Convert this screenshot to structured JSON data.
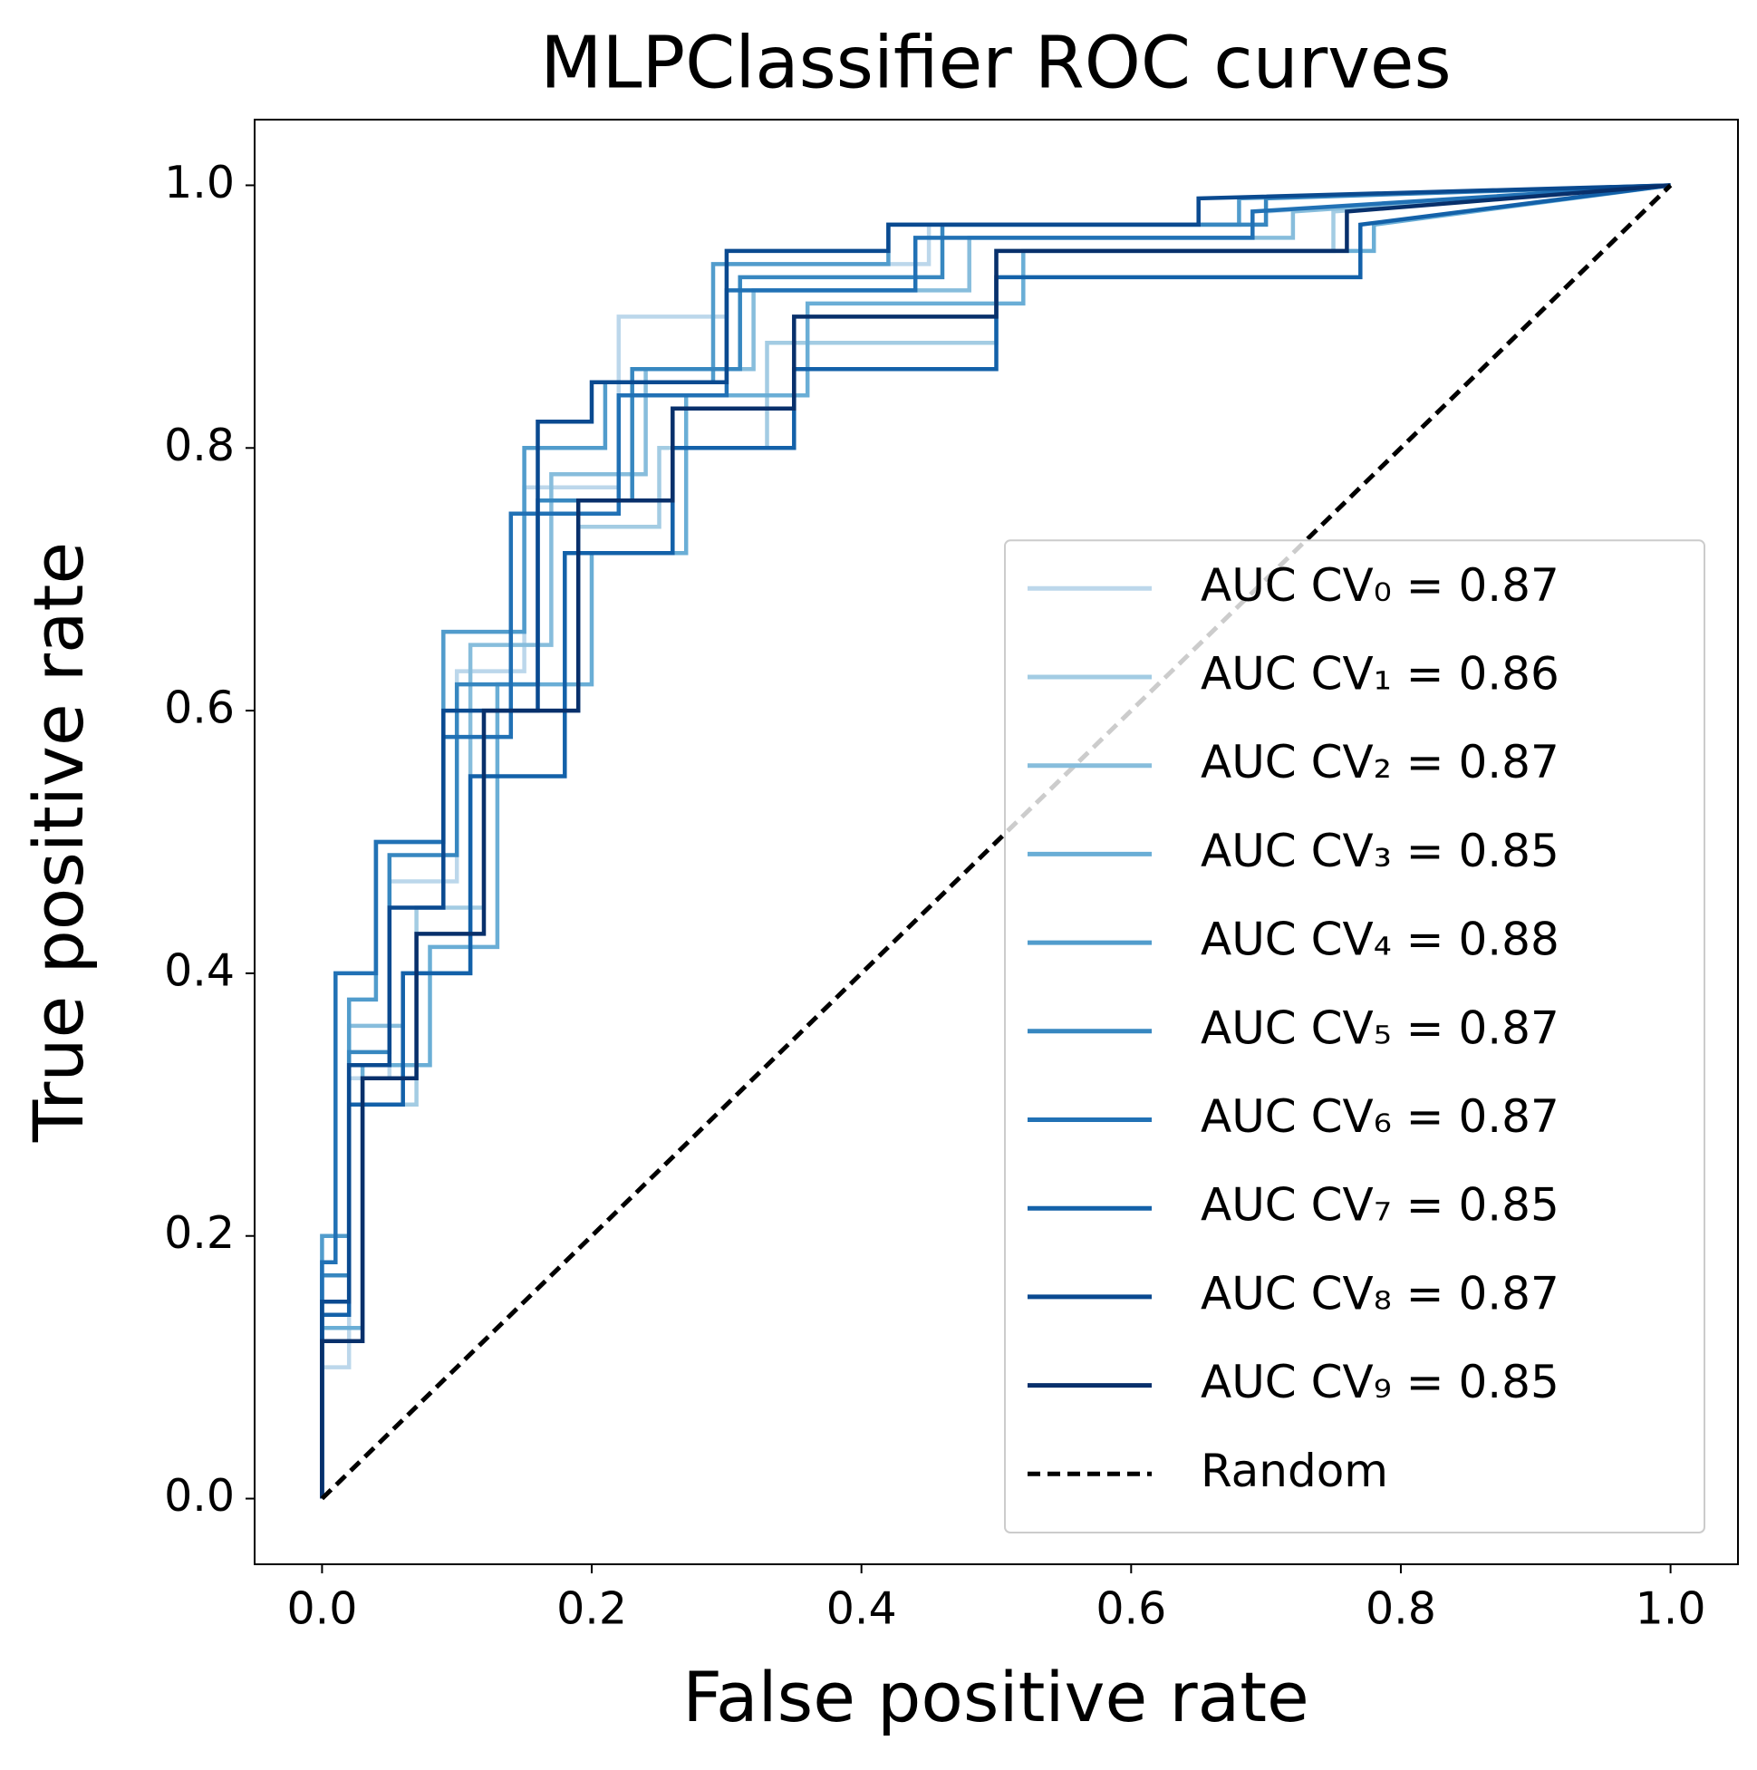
{
  "chart_data": {
    "type": "line",
    "title": "MLPClassifier ROC curves",
    "x_label": "False positive rate",
    "y_label": "True positive rate",
    "xlim": [
      -0.05,
      1.05
    ],
    "ylim": [
      -0.05,
      1.05
    ],
    "xticks": [
      {
        "value": 0,
        "label": "0.0"
      },
      {
        "value": 0.2,
        "label": "0.2"
      },
      {
        "value": 0.4,
        "label": "0.4"
      },
      {
        "value": 0.6,
        "label": "0.6"
      },
      {
        "value": 0.8,
        "label": "0.8"
      },
      {
        "value": 1,
        "label": "1.0"
      }
    ],
    "yticks": [
      {
        "value": 0,
        "label": "0.0"
      },
      {
        "value": 0.2,
        "label": "0.2"
      },
      {
        "value": 0.4,
        "label": "0.4"
      },
      {
        "value": 0.6,
        "label": "0.6"
      },
      {
        "value": 0.8,
        "label": "0.8"
      },
      {
        "value": 1,
        "label": "1.0"
      }
    ],
    "legend": "lower right",
    "series": [
      {
        "name": "AUC CV₀ = 0.87",
        "color": "#bcd7eb",
        "linestyle": "solid",
        "x": [
          0,
          0,
          0.02,
          0.02,
          0.05,
          0.05,
          0.1,
          0.1,
          0.15,
          0.15,
          0.22,
          0.22,
          0.3,
          0.3,
          0.45,
          0.45,
          0.7,
          0.7,
          1
        ],
        "y": [
          0,
          0.1,
          0.1,
          0.32,
          0.32,
          0.47,
          0.47,
          0.63,
          0.63,
          0.77,
          0.77,
          0.9,
          0.9,
          0.94,
          0.94,
          0.97,
          0.97,
          0.98,
          1
        ]
      },
      {
        "name": "AUC CV₁ = 0.86",
        "color": "#a3cce3",
        "linestyle": "solid",
        "x": [
          0,
          0,
          0.03,
          0.03,
          0.07,
          0.07,
          0.12,
          0.12,
          0.19,
          0.19,
          0.25,
          0.25,
          0.33,
          0.33,
          0.5,
          0.5,
          0.75,
          0.75,
          1
        ],
        "y": [
          0,
          0.12,
          0.12,
          0.3,
          0.3,
          0.45,
          0.45,
          0.6,
          0.6,
          0.74,
          0.74,
          0.8,
          0.8,
          0.88,
          0.88,
          0.95,
          0.95,
          0.98,
          1
        ]
      },
      {
        "name": "AUC CV₂ = 0.87",
        "color": "#87bddc",
        "linestyle": "solid",
        "x": [
          0,
          0,
          0.02,
          0.02,
          0.06,
          0.06,
          0.11,
          0.11,
          0.17,
          0.17,
          0.24,
          0.24,
          0.32,
          0.32,
          0.48,
          0.48,
          0.72,
          0.72,
          1
        ],
        "y": [
          0,
          0.15,
          0.15,
          0.36,
          0.36,
          0.4,
          0.4,
          0.65,
          0.65,
          0.78,
          0.78,
          0.86,
          0.86,
          0.92,
          0.92,
          0.96,
          0.96,
          0.98,
          1
        ]
      },
      {
        "name": "AUC CV₃ = 0.85",
        "color": "#6aaed6",
        "linestyle": "solid",
        "x": [
          0,
          0,
          0.03,
          0.03,
          0.08,
          0.08,
          0.13,
          0.13,
          0.2,
          0.2,
          0.27,
          0.27,
          0.36,
          0.36,
          0.52,
          0.52,
          0.78,
          0.78,
          1
        ],
        "y": [
          0,
          0.13,
          0.13,
          0.33,
          0.33,
          0.42,
          0.42,
          0.62,
          0.62,
          0.72,
          0.72,
          0.84,
          0.84,
          0.91,
          0.91,
          0.95,
          0.95,
          0.97,
          1
        ]
      },
      {
        "name": "AUC CV₄ = 0.88",
        "color": "#519ccc",
        "linestyle": "solid",
        "x": [
          0,
          0,
          0.02,
          0.02,
          0.04,
          0.04,
          0.09,
          0.09,
          0.15,
          0.15,
          0.21,
          0.21,
          0.29,
          0.29,
          0.42,
          0.42,
          0.68,
          0.68,
          1
        ],
        "y": [
          0,
          0.2,
          0.2,
          0.38,
          0.38,
          0.5,
          0.5,
          0.66,
          0.66,
          0.8,
          0.8,
          0.85,
          0.85,
          0.94,
          0.94,
          0.97,
          0.97,
          0.99,
          1
        ]
      },
      {
        "name": "AUC CV₅ = 0.87",
        "color": "#3787c0",
        "linestyle": "solid",
        "x": [
          0,
          0,
          0.02,
          0.02,
          0.05,
          0.05,
          0.1,
          0.1,
          0.16,
          0.16,
          0.23,
          0.23,
          0.31,
          0.31,
          0.46,
          0.46,
          0.7,
          0.7,
          1
        ],
        "y": [
          0,
          0.17,
          0.17,
          0.34,
          0.34,
          0.49,
          0.49,
          0.62,
          0.62,
          0.76,
          0.76,
          0.86,
          0.86,
          0.93,
          0.93,
          0.97,
          0.97,
          0.99,
          1
        ]
      },
      {
        "name": "AUC CV₆ = 0.87",
        "color": "#2171b5",
        "linestyle": "solid",
        "x": [
          0,
          0,
          0.01,
          0.01,
          0.04,
          0.04,
          0.09,
          0.09,
          0.14,
          0.14,
          0.22,
          0.22,
          0.3,
          0.3,
          0.44,
          0.44,
          0.69,
          0.69,
          1
        ],
        "y": [
          0,
          0.18,
          0.18,
          0.4,
          0.4,
          0.5,
          0.5,
          0.58,
          0.58,
          0.75,
          0.75,
          0.84,
          0.84,
          0.92,
          0.92,
          0.96,
          0.96,
          0.98,
          1
        ]
      },
      {
        "name": "AUC CV₇ = 0.85",
        "color": "#1361a9",
        "linestyle": "solid",
        "x": [
          0,
          0,
          0.02,
          0.02,
          0.06,
          0.06,
          0.11,
          0.11,
          0.18,
          0.18,
          0.26,
          0.26,
          0.35,
          0.35,
          0.5,
          0.5,
          0.77,
          0.77,
          1
        ],
        "y": [
          0,
          0.14,
          0.14,
          0.3,
          0.3,
          0.4,
          0.4,
          0.55,
          0.55,
          0.72,
          0.72,
          0.8,
          0.8,
          0.86,
          0.86,
          0.93,
          0.93,
          0.97,
          1
        ]
      },
      {
        "name": "AUC CV₈ = 0.87",
        "color": "#0a4a90",
        "linestyle": "solid",
        "x": [
          0,
          0,
          0.02,
          0.02,
          0.05,
          0.05,
          0.09,
          0.09,
          0.16,
          0.16,
          0.2,
          0.2,
          0.3,
          0.3,
          0.42,
          0.42,
          0.65,
          0.65,
          1
        ],
        "y": [
          0,
          0.15,
          0.15,
          0.33,
          0.33,
          0.45,
          0.45,
          0.6,
          0.6,
          0.82,
          0.82,
          0.85,
          0.85,
          0.95,
          0.95,
          0.97,
          0.97,
          0.99,
          1
        ]
      },
      {
        "name": "AUC CV₉ = 0.85",
        "color": "#08306b",
        "linestyle": "solid",
        "x": [
          0,
          0,
          0.03,
          0.03,
          0.07,
          0.07,
          0.12,
          0.12,
          0.19,
          0.19,
          0.26,
          0.26,
          0.35,
          0.35,
          0.5,
          0.5,
          0.76,
          0.76,
          1
        ],
        "y": [
          0,
          0.12,
          0.12,
          0.32,
          0.32,
          0.43,
          0.43,
          0.6,
          0.6,
          0.76,
          0.76,
          0.83,
          0.83,
          0.9,
          0.9,
          0.95,
          0.95,
          0.98,
          1
        ]
      },
      {
        "name": "Random",
        "color": "#000000",
        "linestyle": "dashed",
        "x": [
          0,
          1
        ],
        "y": [
          0,
          1
        ]
      }
    ]
  }
}
